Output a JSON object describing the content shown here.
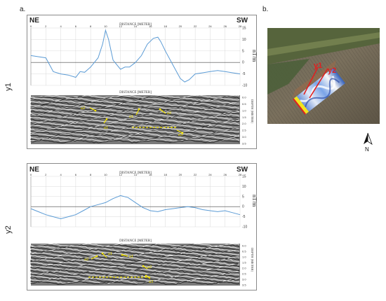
{
  "panel_a_label": "a.",
  "panel_b_label": "b.",
  "profiles": [
    {
      "row_label": "y1",
      "dir_left": "NE",
      "dir_right": "SW",
      "mag_title": "DISTANCE [METER]",
      "gpr_title": "DISTANCE [METER]",
      "mag_unit": "nT/m",
      "depth_label": "DEPTH [METER]",
      "x_ticks": [
        "0",
        "2",
        "4",
        "6",
        "8",
        "10",
        "12",
        "14",
        "16",
        "18",
        "20",
        "22",
        "24",
        "26",
        "28"
      ],
      "y_ticks": [
        "15",
        "10",
        "5",
        "0",
        "-5",
        "-10"
      ],
      "depth_ticks": [
        "0.0",
        "0.5",
        "1.0",
        "1.5",
        "2.0",
        "2.5",
        "3.0",
        "3.5"
      ],
      "annotations": [
        "a2",
        "a1",
        "a1",
        "a2",
        "a3"
      ]
    },
    {
      "row_label": "y2",
      "dir_left": "NE",
      "dir_right": "SW",
      "mag_title": "DISTANCE [METER]",
      "gpr_title": "DISTANCE [METER]",
      "mag_unit": "nT/m",
      "depth_label": "DEPTH [METER]",
      "x_ticks": [
        "0",
        "2",
        "4",
        "6",
        "8",
        "10",
        "12",
        "14",
        "16",
        "18",
        "20",
        "22",
        "24",
        "26",
        "28"
      ],
      "y_ticks": [
        "15",
        "10",
        "5",
        "0",
        "-5",
        "-10"
      ],
      "depth_ticks": [
        "0.0",
        "0.5",
        "1.0",
        "1.5",
        "2.0",
        "2.5",
        "3.0",
        "3.5"
      ],
      "annotations": [
        "a2",
        "a1",
        "a1",
        "a2",
        "a3"
      ]
    }
  ],
  "map_labels": {
    "line1": "y1",
    "line2": "y2",
    "north": "N"
  },
  "colors": {
    "curve": "#5b9bd5",
    "grid": "#d9d9d9",
    "annotation": "#f2e200",
    "accent_red": "#e02020"
  },
  "chart_data": [
    {
      "type": "line",
      "title": "DISTANCE [METER]",
      "xlabel": "",
      "ylabel": "nT/m",
      "xlim": [
        0,
        28
      ],
      "ylim": [
        -10,
        15
      ],
      "series": [
        {
          "x": [
            0,
            1,
            2,
            3,
            4,
            5,
            6,
            6.6,
            7.2,
            8,
            9,
            9.6,
            10,
            10.4,
            11,
            12,
            12.6,
            13.2,
            14,
            14.8,
            15.6,
            16.4,
            17,
            17.4,
            18,
            19,
            20,
            20.6,
            21.2,
            22,
            23,
            24,
            25,
            26,
            27,
            28
          ],
          "y": [
            3,
            2.5,
            2,
            -4,
            -5,
            -5.5,
            -6.5,
            -4,
            -4.3,
            -2,
            2,
            8,
            14,
            10,
            1,
            -3,
            -2,
            -2,
            0,
            3,
            8,
            10.5,
            11,
            9,
            5,
            -1,
            -7,
            -8.5,
            -7.5,
            -5,
            -4.5,
            -4,
            -3.5,
            -4,
            -4.5,
            -5
          ]
        }
      ]
    },
    {
      "type": "line",
      "title": "DISTANCE [METER]",
      "xlabel": "",
      "ylabel": "nT/m",
      "xlim": [
        0,
        28
      ],
      "ylim": [
        -10,
        15
      ],
      "series": [
        {
          "x": [
            0,
            1,
            2,
            3,
            4,
            5,
            6,
            7,
            8,
            9,
            10,
            11,
            12,
            13,
            14,
            15,
            16,
            17,
            18,
            19,
            20,
            21,
            22,
            23,
            24,
            25,
            26,
            27,
            28
          ],
          "y": [
            -1,
            -2.5,
            -4,
            -5,
            -6,
            -5,
            -4,
            -2,
            0,
            1,
            2,
            4,
            5.5,
            4.5,
            2,
            -0.5,
            -2,
            -2.5,
            -1.5,
            -1,
            -0.5,
            0,
            -0.5,
            -1.5,
            -2,
            -2.5,
            -2,
            -3,
            -4
          ]
        }
      ]
    }
  ]
}
